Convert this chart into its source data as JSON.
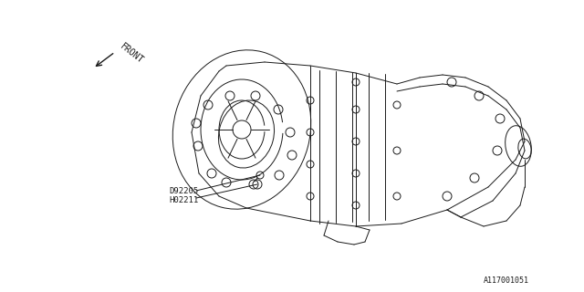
{
  "bg_color": "#ffffff",
  "line_color": "#1a1a1a",
  "label1": "H02211",
  "label2": "D92205",
  "front_label": "FRONT",
  "part_number": "A117001051",
  "fig_width": 6.4,
  "fig_height": 3.2,
  "dpi": 100
}
